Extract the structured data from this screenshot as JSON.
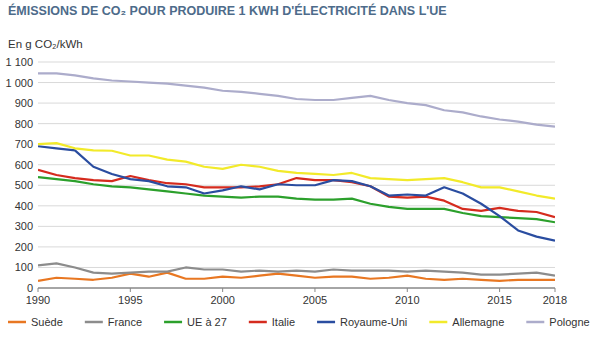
{
  "chart_data": {
    "type": "line",
    "title": "ÉMISSIONS DE CO₂ POUR PRODUIRE 1 KWH D'ÉLECTRICITÉ DANS L'UE",
    "y_label": "En g CO₂/kWh",
    "x": [
      1990,
      1991,
      1992,
      1993,
      1994,
      1995,
      1996,
      1997,
      1998,
      1999,
      2000,
      2001,
      2002,
      2003,
      2004,
      2005,
      2006,
      2007,
      2008,
      2009,
      2010,
      2011,
      2012,
      2013,
      2014,
      2015,
      2016,
      2017,
      2018
    ],
    "xlim": [
      1990,
      2018
    ],
    "xticks": [
      1990,
      1995,
      2000,
      2005,
      2010,
      2015,
      2018
    ],
    "ylim": [
      0,
      1100
    ],
    "yticks": [
      0,
      100,
      200,
      300,
      400,
      500,
      600,
      700,
      800,
      900,
      {
        "value": 1000,
        "label": "1 000"
      },
      {
        "value": 1100,
        "label": "1 100"
      }
    ],
    "grid": true,
    "legend": "bottom",
    "series": [
      {
        "name": "Suède",
        "color": "#e87722",
        "values": [
          35,
          50,
          45,
          40,
          50,
          70,
          55,
          75,
          45,
          45,
          55,
          50,
          60,
          70,
          60,
          50,
          55,
          55,
          45,
          50,
          60,
          45,
          40,
          45,
          40,
          35,
          40,
          40,
          40
        ]
      },
      {
        "name": "France",
        "color": "#8c8c8c",
        "values": [
          110,
          120,
          100,
          75,
          70,
          75,
          80,
          80,
          100,
          90,
          90,
          80,
          85,
          80,
          85,
          80,
          90,
          85,
          85,
          85,
          80,
          85,
          80,
          75,
          65,
          65,
          70,
          75,
          60
        ]
      },
      {
        "name": "UE à 27",
        "color": "#2ca02c",
        "values": [
          540,
          530,
          520,
          505,
          495,
          490,
          480,
          470,
          460,
          450,
          445,
          440,
          445,
          445,
          435,
          430,
          430,
          435,
          410,
          395,
          385,
          385,
          385,
          365,
          350,
          345,
          340,
          335,
          320
        ]
      },
      {
        "name": "Italie",
        "color": "#d52b1e",
        "values": [
          575,
          550,
          535,
          525,
          520,
          545,
          525,
          510,
          505,
          490,
          490,
          490,
          495,
          505,
          535,
          525,
          525,
          515,
          495,
          445,
          440,
          445,
          425,
          385,
          375,
          390,
          375,
          370,
          345
        ]
      },
      {
        "name": "Royaume-Uni",
        "color": "#2a4da0",
        "values": [
          690,
          680,
          670,
          590,
          555,
          530,
          520,
          495,
          490,
          460,
          475,
          495,
          480,
          505,
          500,
          500,
          525,
          520,
          495,
          450,
          455,
          450,
          490,
          460,
          410,
          350,
          280,
          250,
          230
        ]
      },
      {
        "name": "Allemagne",
        "color": "#f2ea2a",
        "values": [
          700,
          705,
          680,
          670,
          668,
          645,
          645,
          625,
          615,
          590,
          580,
          600,
          590,
          570,
          560,
          555,
          550,
          560,
          535,
          530,
          525,
          530,
          535,
          515,
          490,
          490,
          470,
          450,
          435
        ]
      },
      {
        "name": "Pologne",
        "color": "#acaccb",
        "values": [
          1045,
          1045,
          1035,
          1020,
          1010,
          1005,
          1000,
          995,
          985,
          975,
          960,
          955,
          945,
          935,
          920,
          915,
          915,
          925,
          935,
          915,
          900,
          890,
          865,
          855,
          835,
          820,
          810,
          795,
          785
        ]
      }
    ]
  }
}
